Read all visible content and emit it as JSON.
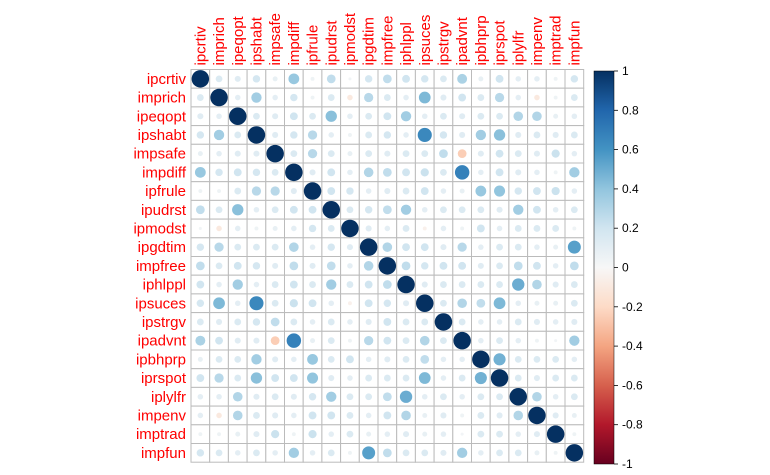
{
  "chart_data": {
    "type": "heatmap",
    "variables": [
      "ipcrtiv",
      "imprich",
      "ipeqopt",
      "ipshabt",
      "impsafe",
      "impdiff",
      "ipfrule",
      "ipudrst",
      "ipmodst",
      "ipgdtim",
      "impfree",
      "iphlppl",
      "ipsuces",
      "ipstrgv",
      "ipadvnt",
      "ipbhprp",
      "iprspot",
      "iplylfr",
      "impenv",
      "imptrad",
      "impfun"
    ],
    "value_range": [
      -1,
      1
    ],
    "colorbar_ticks": [
      "1",
      "0.8",
      "0.6",
      "0.4",
      "0.2",
      "0",
      "-0.2",
      "-0.4",
      "-0.6",
      "-0.8",
      "-1"
    ],
    "colorbar_tick_values": [
      1,
      0.8,
      0.6,
      0.4,
      0.2,
      0,
      -0.2,
      -0.4,
      -0.6,
      -0.8,
      -1
    ],
    "colors": {
      "label": "#ff0000",
      "grid": "#bbbbbb",
      "negative": "#67001f",
      "neutral": "#f7f7f7",
      "positive": "#053061"
    },
    "matrix": [
      [
        1,
        0.15,
        0.12,
        0.18,
        0.08,
        0.38,
        0.05,
        0.25,
        0.03,
        0.18,
        0.25,
        0.2,
        0.18,
        0.15,
        0.32,
        0.08,
        0.2,
        0.1,
        0.1,
        0.05,
        0.18
      ],
      [
        0.15,
        1,
        0.1,
        0.35,
        0.1,
        0.18,
        0.05,
        0.15,
        -0.1,
        0.28,
        0.15,
        0.1,
        0.45,
        0.12,
        0.2,
        0.15,
        0.28,
        0.1,
        -0.1,
        0.05,
        0.15
      ],
      [
        0.12,
        0.1,
        1,
        0.15,
        0.12,
        0.2,
        0.15,
        0.42,
        0.1,
        0.15,
        0.2,
        0.35,
        0.1,
        0.15,
        0.12,
        0.15,
        0.15,
        0.3,
        0.3,
        0.08,
        0.1
      ],
      [
        0.18,
        0.35,
        0.15,
        1,
        0.12,
        0.18,
        0.28,
        0.1,
        0.05,
        0.15,
        0.18,
        0.1,
        0.65,
        0.18,
        0.12,
        0.35,
        0.42,
        0.12,
        0.15,
        0.12,
        0.15
      ],
      [
        0.08,
        0.1,
        0.12,
        0.12,
        1,
        0.15,
        0.28,
        0.15,
        0.08,
        0.15,
        0.12,
        0.15,
        0.15,
        0.25,
        -0.25,
        0.12,
        0.2,
        0.15,
        0.12,
        0.22,
        0.1
      ],
      [
        0.38,
        0.18,
        0.2,
        0.18,
        0.15,
        1,
        0.12,
        0.2,
        0.1,
        0.3,
        0.25,
        0.2,
        0.22,
        0.15,
        0.68,
        0.1,
        0.2,
        0.12,
        0.1,
        0.05,
        0.35
      ],
      [
        0.05,
        0.05,
        0.15,
        0.28,
        0.28,
        0.12,
        1,
        0.2,
        0.18,
        0.1,
        0.12,
        0.15,
        0.2,
        0.1,
        0.08,
        0.38,
        0.4,
        0.18,
        0.2,
        0.22,
        0.1
      ],
      [
        0.25,
        0.15,
        0.42,
        0.1,
        0.15,
        0.2,
        0.2,
        1,
        0.15,
        0.18,
        0.25,
        0.35,
        0.1,
        0.15,
        0.15,
        0.15,
        0.12,
        0.35,
        0.2,
        0.1,
        0.15
      ],
      [
        0.03,
        -0.1,
        0.1,
        0.05,
        0.08,
        0.1,
        0.18,
        0.15,
        1,
        0.12,
        0.1,
        0.15,
        -0.05,
        0.1,
        0.05,
        0.2,
        0.1,
        0.15,
        0.15,
        0.15,
        0.05
      ],
      [
        0.18,
        0.28,
        0.15,
        0.15,
        0.15,
        0.3,
        0.1,
        0.18,
        0.12,
        1,
        0.3,
        0.2,
        0.2,
        0.12,
        0.28,
        0.1,
        0.15,
        0.15,
        0.1,
        0.08,
        0.55
      ],
      [
        0.25,
        0.15,
        0.2,
        0.18,
        0.12,
        0.25,
        0.12,
        0.25,
        0.1,
        0.3,
        1,
        0.25,
        0.18,
        0.2,
        0.2,
        0.12,
        0.15,
        0.25,
        0.2,
        0.1,
        0.25
      ],
      [
        0.2,
        0.1,
        0.35,
        0.1,
        0.15,
        0.2,
        0.15,
        0.35,
        0.15,
        0.2,
        0.25,
        1,
        0.12,
        0.15,
        0.15,
        0.15,
        0.15,
        0.5,
        0.3,
        0.12,
        0.15
      ],
      [
        0.18,
        0.45,
        0.1,
        0.65,
        0.15,
        0.22,
        0.2,
        0.1,
        -0.05,
        0.2,
        0.18,
        0.12,
        1,
        0.15,
        0.3,
        0.25,
        0.45,
        0.1,
        0.08,
        0.08,
        0.15
      ],
      [
        0.15,
        0.12,
        0.15,
        0.18,
        0.25,
        0.15,
        0.1,
        0.15,
        0.1,
        0.12,
        0.2,
        0.15,
        0.15,
        1,
        0.15,
        0.1,
        0.1,
        0.15,
        0.12,
        0.1,
        0.12
      ],
      [
        0.32,
        0.2,
        0.12,
        0.12,
        -0.25,
        0.68,
        0.08,
        0.15,
        0.05,
        0.28,
        0.2,
        0.15,
        0.3,
        0.15,
        1,
        0.1,
        0.15,
        0.1,
        0.05,
        0.03,
        0.35
      ],
      [
        0.08,
        0.15,
        0.15,
        0.35,
        0.12,
        0.1,
        0.38,
        0.15,
        0.2,
        0.1,
        0.12,
        0.15,
        0.25,
        0.1,
        0.1,
        1,
        0.48,
        0.15,
        0.15,
        0.15,
        0.1
      ],
      [
        0.2,
        0.28,
        0.15,
        0.42,
        0.2,
        0.2,
        0.4,
        0.12,
        0.1,
        0.15,
        0.15,
        0.15,
        0.45,
        0.1,
        0.15,
        0.48,
        1,
        0.15,
        0.12,
        0.15,
        0.15
      ],
      [
        0.1,
        0.1,
        0.3,
        0.12,
        0.15,
        0.12,
        0.18,
        0.35,
        0.15,
        0.15,
        0.25,
        0.5,
        0.1,
        0.15,
        0.1,
        0.15,
        0.15,
        1,
        0.3,
        0.1,
        0.15
      ],
      [
        0.1,
        -0.1,
        0.3,
        0.15,
        0.12,
        0.1,
        0.2,
        0.2,
        0.15,
        0.1,
        0.2,
        0.3,
        0.08,
        0.12,
        0.05,
        0.15,
        0.12,
        0.3,
        1,
        0.12,
        0.08
      ],
      [
        0.05,
        0.05,
        0.08,
        0.12,
        0.22,
        0.05,
        0.22,
        0.1,
        0.15,
        0.08,
        0.1,
        0.12,
        0.08,
        0.1,
        0.03,
        0.15,
        0.15,
        0.1,
        0.12,
        1,
        0.05
      ],
      [
        0.18,
        0.15,
        0.1,
        0.15,
        0.1,
        0.35,
        0.1,
        0.15,
        0.05,
        0.55,
        0.25,
        0.15,
        0.15,
        0.12,
        0.35,
        0.1,
        0.15,
        0.15,
        0.08,
        0.05,
        1
      ]
    ]
  }
}
